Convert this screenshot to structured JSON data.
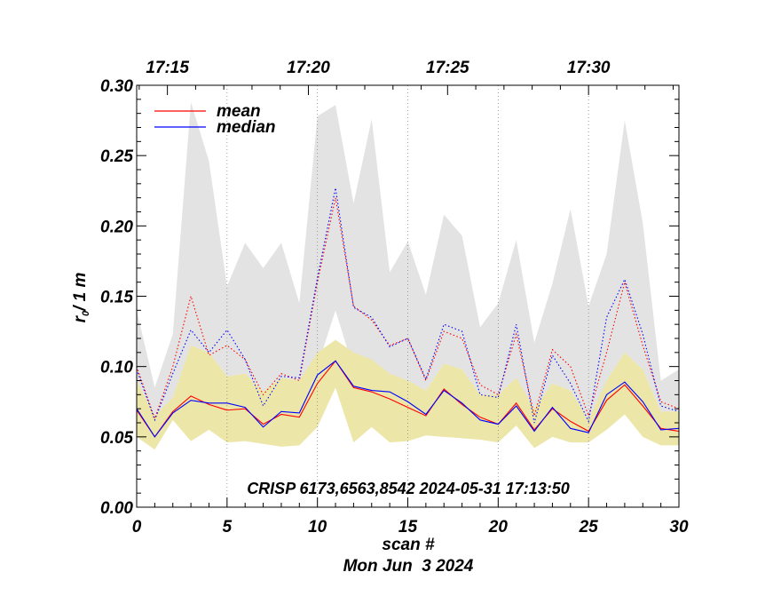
{
  "chart_data": {
    "type": "line",
    "xlabel": "scan #",
    "ylabel": "r",
    "ylabel_sub": "0",
    "ylabel_unit": "/ 1 m",
    "date_label": "Mon Jun  3 2024",
    "annotation": "CRISP 6173,6563,8542 2024-05-31 17:13:50",
    "xlim": [
      0,
      30
    ],
    "ylim": [
      0.0,
      0.3
    ],
    "x_ticks": [
      0,
      5,
      10,
      15,
      20,
      25,
      30
    ],
    "x_tick_labels": [
      "0",
      "5",
      "10",
      "15",
      "20",
      "25",
      "30"
    ],
    "y_ticks": [
      0.0,
      0.05,
      0.1,
      0.15,
      0.2,
      0.25,
      0.3
    ],
    "y_tick_labels": [
      "0.00",
      "0.05",
      "0.10",
      "0.15",
      "0.20",
      "0.25",
      "0.30"
    ],
    "top_axis": {
      "labels": [
        "17:15",
        "17:20",
        "17:25",
        "17:30"
      ],
      "positions": [
        1.7,
        9.5,
        17.2,
        25.0
      ]
    },
    "vertical_gridlines": [
      5,
      10,
      15,
      20,
      25
    ],
    "legend": [
      {
        "name": "mean",
        "color": "#ff0000"
      },
      {
        "name": "median",
        "color": "#0000ff"
      }
    ],
    "x": [
      0,
      1,
      2,
      3,
      4,
      5,
      6,
      7,
      8,
      9,
      10,
      11,
      12,
      13,
      14,
      15,
      16,
      17,
      18,
      19,
      20,
      21,
      22,
      23,
      24,
      25,
      26,
      27,
      28,
      29,
      30
    ],
    "series": [
      {
        "name": "mean",
        "color": "#ff0000",
        "style": "solid",
        "values": [
          0.069,
          0.05,
          0.068,
          0.079,
          0.073,
          0.069,
          0.07,
          0.059,
          0.066,
          0.064,
          0.088,
          0.104,
          0.085,
          0.082,
          0.077,
          0.071,
          0.065,
          0.084,
          0.073,
          0.064,
          0.059,
          0.074,
          0.055,
          0.07,
          0.061,
          0.054,
          0.076,
          0.087,
          0.072,
          0.056,
          0.054
        ]
      },
      {
        "name": "median",
        "color": "#0000ff",
        "style": "solid",
        "values": [
          0.07,
          0.05,
          0.067,
          0.076,
          0.074,
          0.074,
          0.071,
          0.057,
          0.068,
          0.067,
          0.094,
          0.104,
          0.086,
          0.083,
          0.082,
          0.075,
          0.066,
          0.083,
          0.074,
          0.062,
          0.059,
          0.072,
          0.054,
          0.071,
          0.056,
          0.053,
          0.08,
          0.089,
          0.075,
          0.055,
          0.056
        ]
      },
      {
        "name": "mean-upper",
        "color": "#ff0000",
        "style": "dotted",
        "values": [
          0.1,
          0.063,
          0.1,
          0.15,
          0.108,
          0.115,
          0.105,
          0.08,
          0.095,
          0.09,
          0.16,
          0.22,
          0.143,
          0.133,
          0.115,
          0.12,
          0.09,
          0.125,
          0.12,
          0.087,
          0.08,
          0.123,
          0.065,
          0.112,
          0.1,
          0.065,
          0.11,
          0.16,
          0.115,
          0.075,
          0.07
        ]
      },
      {
        "name": "median-upper",
        "color": "#0000ff",
        "style": "dotted",
        "values": [
          0.098,
          0.062,
          0.095,
          0.126,
          0.11,
          0.126,
          0.105,
          0.072,
          0.093,
          0.092,
          0.163,
          0.227,
          0.142,
          0.135,
          0.114,
          0.12,
          0.091,
          0.13,
          0.125,
          0.08,
          0.078,
          0.13,
          0.06,
          0.108,
          0.088,
          0.061,
          0.135,
          0.162,
          0.123,
          0.072,
          0.068
        ]
      }
    ],
    "bands": [
      {
        "name": "gray-band",
        "color": "#e3e3e3",
        "upper": [
          0.14,
          0.085,
          0.123,
          0.288,
          0.246,
          0.157,
          0.188,
          0.17,
          0.188,
          0.145,
          0.278,
          0.286,
          0.216,
          0.276,
          0.167,
          0.189,
          0.151,
          0.208,
          0.193,
          0.128,
          0.145,
          0.19,
          0.117,
          0.159,
          0.212,
          0.143,
          0.18,
          0.275,
          0.202,
          0.09,
          0.098
        ],
        "lower": [
          0.09,
          0.065,
          0.078,
          0.115,
          0.11,
          0.093,
          0.095,
          0.082,
          0.092,
          0.09,
          0.1,
          0.14,
          0.098,
          0.093,
          0.092,
          0.09,
          0.083,
          0.102,
          0.098,
          0.08,
          0.08,
          0.092,
          0.058,
          0.088,
          0.083,
          0.06,
          0.09,
          0.11,
          0.098,
          0.068,
          0.068
        ]
      },
      {
        "name": "yellow-band",
        "color": "#ece6a8",
        "upper": [
          0.09,
          0.065,
          0.078,
          0.115,
          0.11,
          0.093,
          0.095,
          0.082,
          0.092,
          0.09,
          0.11,
          0.119,
          0.11,
          0.105,
          0.095,
          0.09,
          0.083,
          0.102,
          0.098,
          0.08,
          0.08,
          0.092,
          0.07,
          0.088,
          0.083,
          0.062,
          0.09,
          0.11,
          0.098,
          0.068,
          0.068
        ],
        "lower": [
          0.05,
          0.041,
          0.062,
          0.047,
          0.055,
          0.046,
          0.047,
          0.045,
          0.043,
          0.044,
          0.057,
          0.085,
          0.046,
          0.057,
          0.046,
          0.047,
          0.051,
          0.05,
          0.049,
          0.048,
          0.046,
          0.058,
          0.042,
          0.05,
          0.046,
          0.046,
          0.055,
          0.066,
          0.05,
          0.044,
          0.044
        ]
      }
    ]
  }
}
